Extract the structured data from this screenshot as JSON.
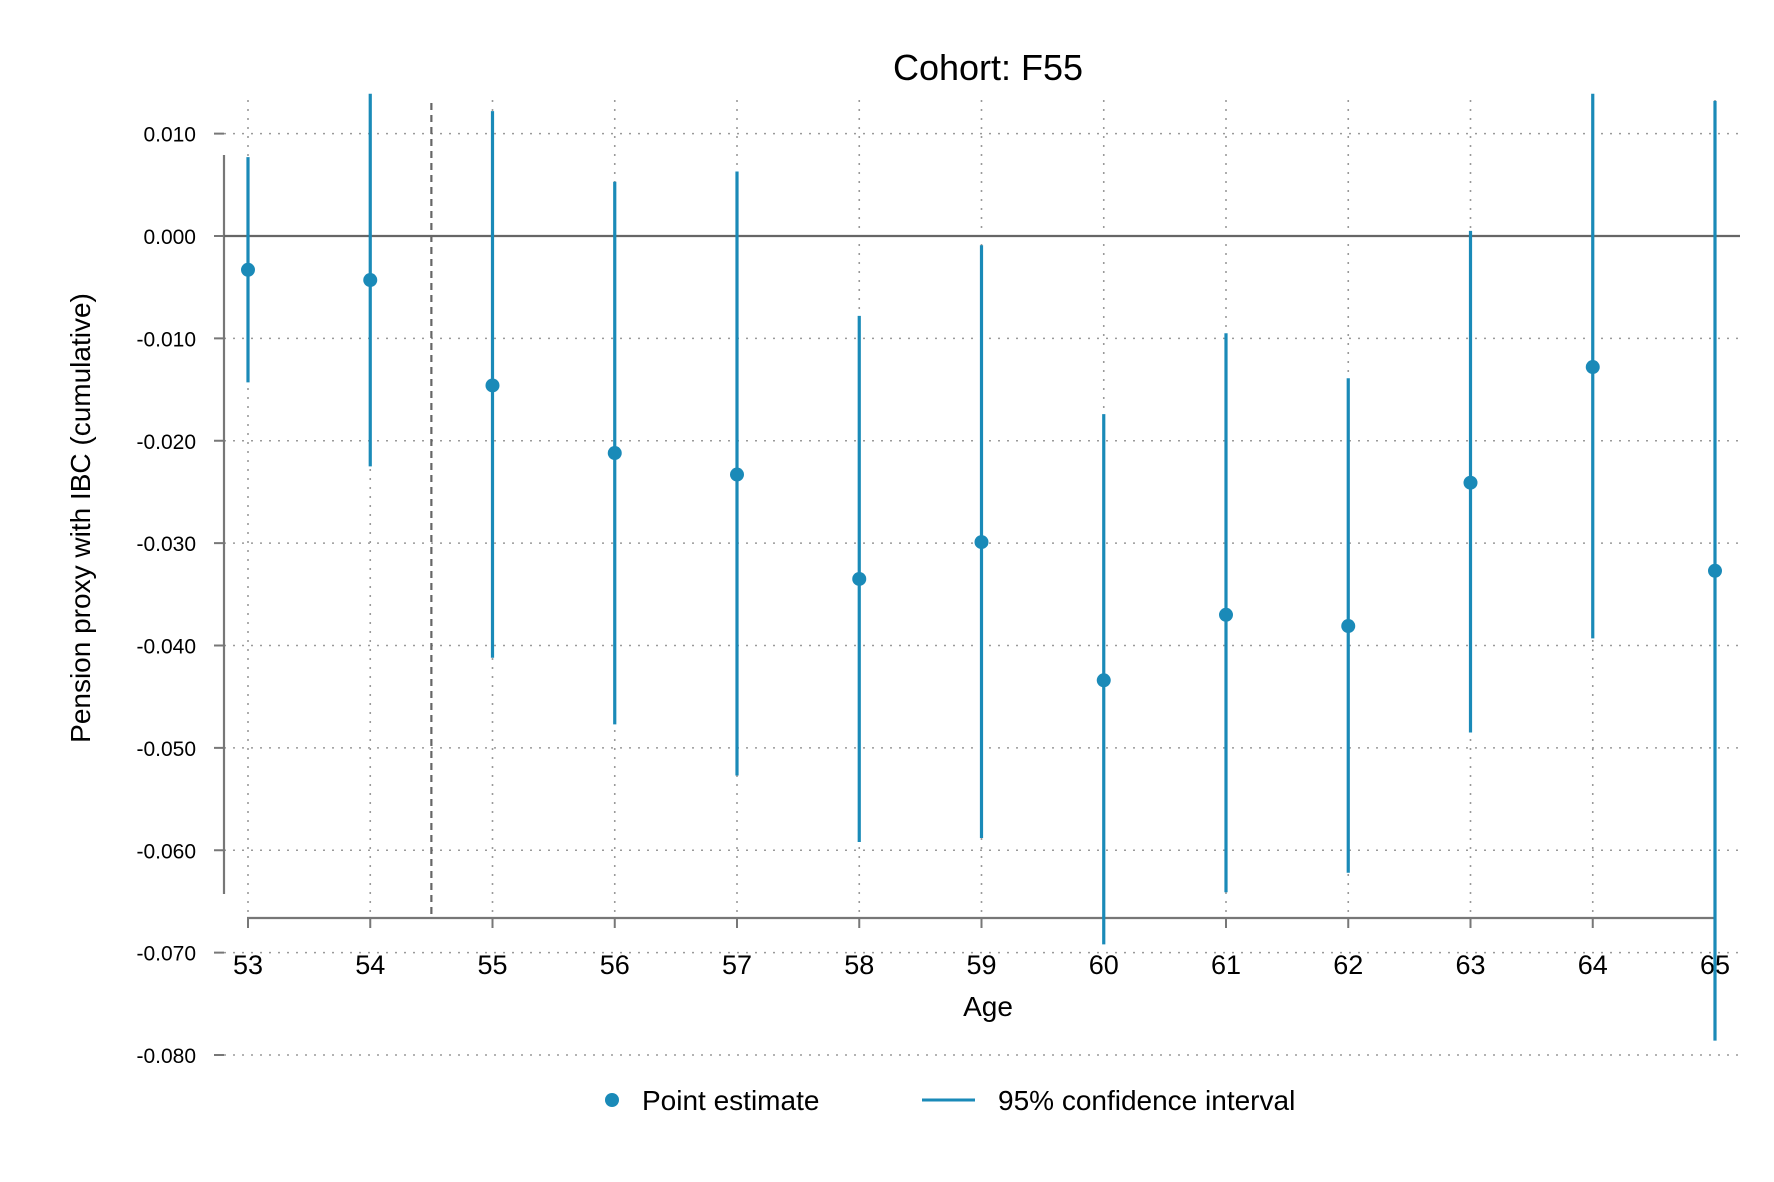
{
  "chart_data": {
    "type": "scatter",
    "title": "Cohort: F55",
    "xlabel": "Age",
    "ylabel": "Pension proxy with IBC (cumulative)",
    "x": [
      53,
      54,
      55,
      56,
      57,
      58,
      59,
      60,
      61,
      62,
      63,
      64,
      65
    ],
    "x_tick_labels": [
      "53",
      "54",
      "55",
      "56",
      "57",
      "58",
      "59",
      "60",
      "61",
      "62",
      "63",
      "64",
      "65"
    ],
    "y_ticks": [
      0.01,
      0.0,
      -0.01,
      -0.02,
      -0.03,
      -0.04,
      -0.05,
      -0.06,
      -0.07,
      -0.08
    ],
    "y_tick_labels": [
      "0.010",
      "0.000",
      "-0.010",
      "-0.020",
      "-0.030",
      "-0.040",
      "-0.050",
      "-0.060",
      "-0.070",
      "-0.080"
    ],
    "xlim": [
      52.8,
      65.2
    ],
    "ylim": [
      -0.083,
      0.0175
    ],
    "series": [
      {
        "name": "Point estimate",
        "values": [
          -0.0033,
          -0.0043,
          -0.0146,
          -0.0212,
          -0.0233,
          -0.0335,
          -0.0299,
          -0.0434,
          -0.037,
          -0.0381,
          -0.0241,
          -0.0128,
          -0.0327
        ]
      },
      {
        "name": "95% confidence interval",
        "lower": [
          -0.0143,
          -0.0225,
          -0.0412,
          -0.0477,
          -0.0527,
          -0.0592,
          -0.0588,
          -0.0692,
          -0.0641,
          -0.0622,
          -0.0485,
          -0.0393,
          -0.0786
        ],
        "upper": [
          0.0077,
          0.0139,
          0.0122,
          0.0053,
          0.0063,
          -0.0078,
          -0.0009,
          -0.0174,
          -0.0095,
          -0.0139,
          0.0005,
          0.0139,
          0.0132
        ]
      }
    ],
    "reference_lines": {
      "horizontal_y": 0.0,
      "vertical_x": 54.5
    },
    "grid": true,
    "legend_position": "bottom",
    "colors": {
      "series": "#1a8ab8",
      "axis": "#777777",
      "grid": "#9a9a9a",
      "reference": "#666666"
    }
  }
}
